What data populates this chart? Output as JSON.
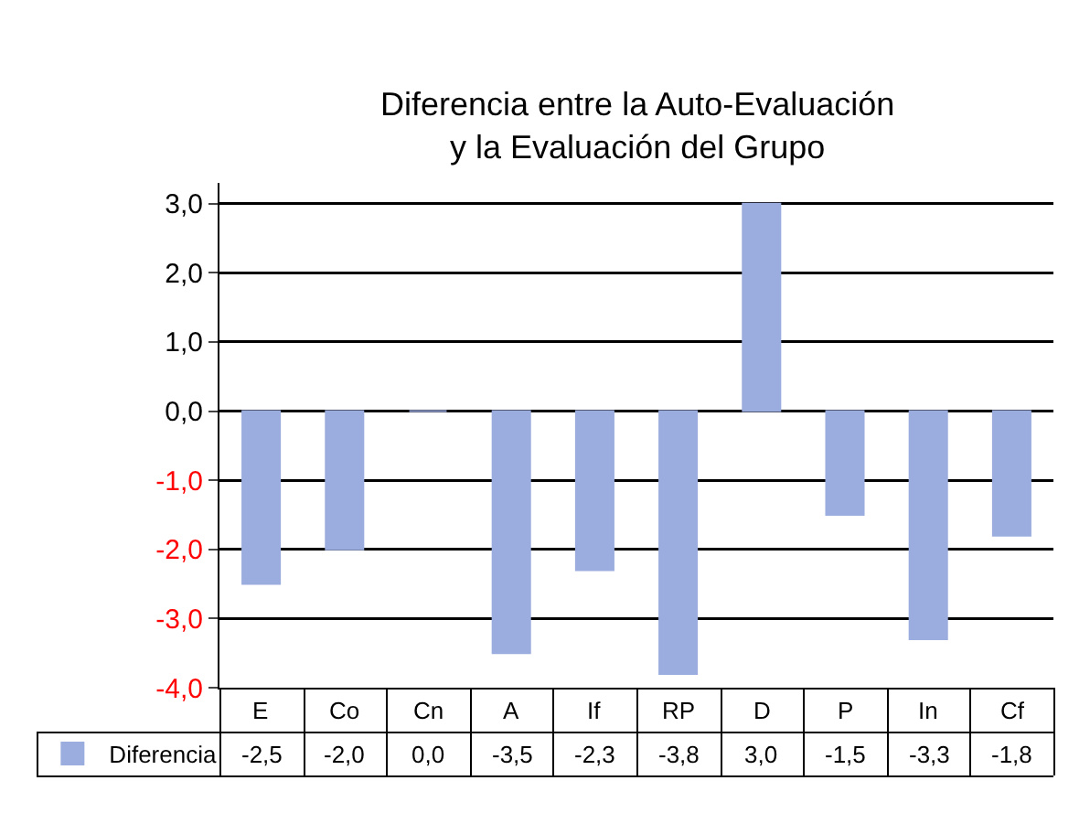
{
  "chart_data": {
    "type": "bar",
    "title": "Diferencia entre la Auto-Evaluación\ny la Evaluación del Grupo",
    "categories": [
      "E",
      "Co",
      "Cn",
      "A",
      "If",
      "RP",
      "D",
      "P",
      "In",
      "Cf"
    ],
    "series": [
      {
        "name": "Diferencia",
        "color": "#9badde",
        "values": [
          -2.5,
          -2.0,
          0.0,
          -3.5,
          -2.3,
          -3.8,
          3.0,
          -1.5,
          -3.3,
          -1.8
        ],
        "value_labels": [
          "-2,5",
          "-2,0",
          "0,0",
          "-3,5",
          "-2,3",
          "-3,8",
          "3,0",
          "-1,5",
          "-3,3",
          "-1,8"
        ]
      }
    ],
    "ylim": [
      -4,
      3.3
    ],
    "yticks": [
      {
        "value": 3,
        "label": "3,0"
      },
      {
        "value": 2,
        "label": "2,0"
      },
      {
        "value": 1,
        "label": "1,0"
      },
      {
        "value": 0,
        "label": "0,0"
      },
      {
        "value": -1,
        "label": "-1,0"
      },
      {
        "value": -2,
        "label": "-2,0"
      },
      {
        "value": -3,
        "label": "-3,0"
      },
      {
        "value": -4,
        "label": "-4,0"
      }
    ],
    "grid": "y",
    "legend": "bottom left"
  }
}
